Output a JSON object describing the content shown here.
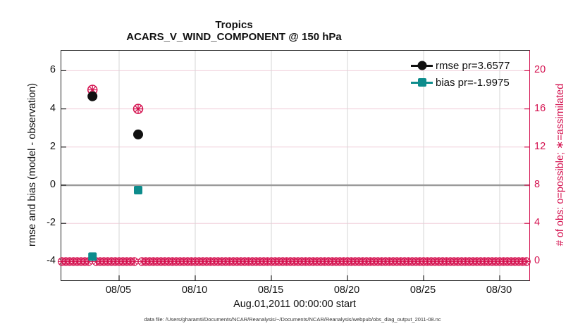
{
  "titles": {
    "region": "Tropics",
    "main": "ACARS_V_WIND_COMPONENT @ 150 hPa"
  },
  "legend": {
    "items": [
      {
        "label": "rmse pr=3.6577",
        "series": "rmse",
        "marker": "filled-circle",
        "color": "#111111"
      },
      {
        "label": "bias pr=-1.9975",
        "series": "bias",
        "marker": "filled-square",
        "color": "#0d8c8c"
      }
    ]
  },
  "axes": {
    "x": {
      "label": "Aug.01,2011 00:00:00 start",
      "tick_labels": [
        "08/05",
        "08/10",
        "08/15",
        "08/20",
        "08/25",
        "08/30"
      ],
      "tick_days": [
        4,
        9,
        14,
        19,
        24,
        29
      ]
    },
    "left_y": {
      "label": "rmse and bias (model - observation)",
      "tick_labels": [
        "6",
        "4",
        "2",
        "0",
        "-2",
        "-4"
      ],
      "tick_values": [
        6,
        4,
        2,
        0,
        -2,
        -4
      ],
      "color": "#111111"
    },
    "right_y": {
      "label": "# of obs: o=possible; ∗=assimilated",
      "tick_labels": [
        "20",
        "16",
        "12",
        "8",
        "4",
        "0"
      ],
      "tick_values": [
        20,
        16,
        12,
        8,
        4,
        0
      ],
      "color": "#d4114f"
    }
  },
  "caption": "data file: /Users/gharamti/Documents/NCAR/Reanalysis/~/Documents/NCAR/Reanalysis/webpub/obs_diag_output_2011-08.nc",
  "colors": {
    "accent_pink": "#d4114f",
    "teal": "#0d8c8c",
    "black": "#111111",
    "grid_h": "#f0cdd9",
    "grid_v": "#d6d6d6",
    "zero_line": "#9a9a9a"
  },
  "chart_data": {
    "type": "scatter",
    "title": "Tropics",
    "subtitle": "ACARS_V_WIND_COMPONENT @ 150 hPa",
    "xlabel": "Aug.01,2011 00:00:00 start",
    "ylabel_left": "rmse and bias (model - observation)",
    "ylabel_right": "# of obs: o=possible; ∗=assimilated",
    "x_axis": {
      "unit": "days since 2011-08-01 00:00:00",
      "lim": [
        0,
        31
      ],
      "tick_days": [
        4,
        9,
        14,
        19,
        24,
        29
      ],
      "tick_labels": [
        "08/05",
        "08/10",
        "08/15",
        "08/20",
        "08/25",
        "08/30"
      ]
    },
    "ylim_left": [
      -5,
      7.2
    ],
    "ylim_right": [
      0,
      24.4
    ],
    "grid": true,
    "legend_position": "top-right",
    "zero_reference_line": 0,
    "series": [
      {
        "name": "rmse",
        "axis": "left",
        "marker": "filled-circle",
        "color": "#111111",
        "legend_label": "rmse pr=3.6577",
        "points": [
          {
            "day": 2.25,
            "value": 4.66
          },
          {
            "day": 5.25,
            "value": 2.66
          }
        ]
      },
      {
        "name": "bias",
        "axis": "left",
        "marker": "filled-square",
        "color": "#0d8c8c",
        "legend_label": "bias pr=-1.9975",
        "points": [
          {
            "day": 2.25,
            "value": -3.74
          },
          {
            "day": 5.25,
            "value": -0.26
          }
        ]
      },
      {
        "name": "obs-count",
        "axis": "right",
        "marker": "circle-asterisk",
        "color": "#d4114f",
        "points": [
          {
            "day": 2.25,
            "possible": 18,
            "assimilated": 18
          },
          {
            "day": 5.25,
            "possible": 16,
            "assimilated": 16
          }
        ],
        "zero_bins": {
          "day_start": 0.25,
          "day_end": 30.75,
          "day_step": 0.25,
          "value": 0,
          "skip_days": [
            2.25,
            5.25
          ]
        }
      }
    ]
  }
}
